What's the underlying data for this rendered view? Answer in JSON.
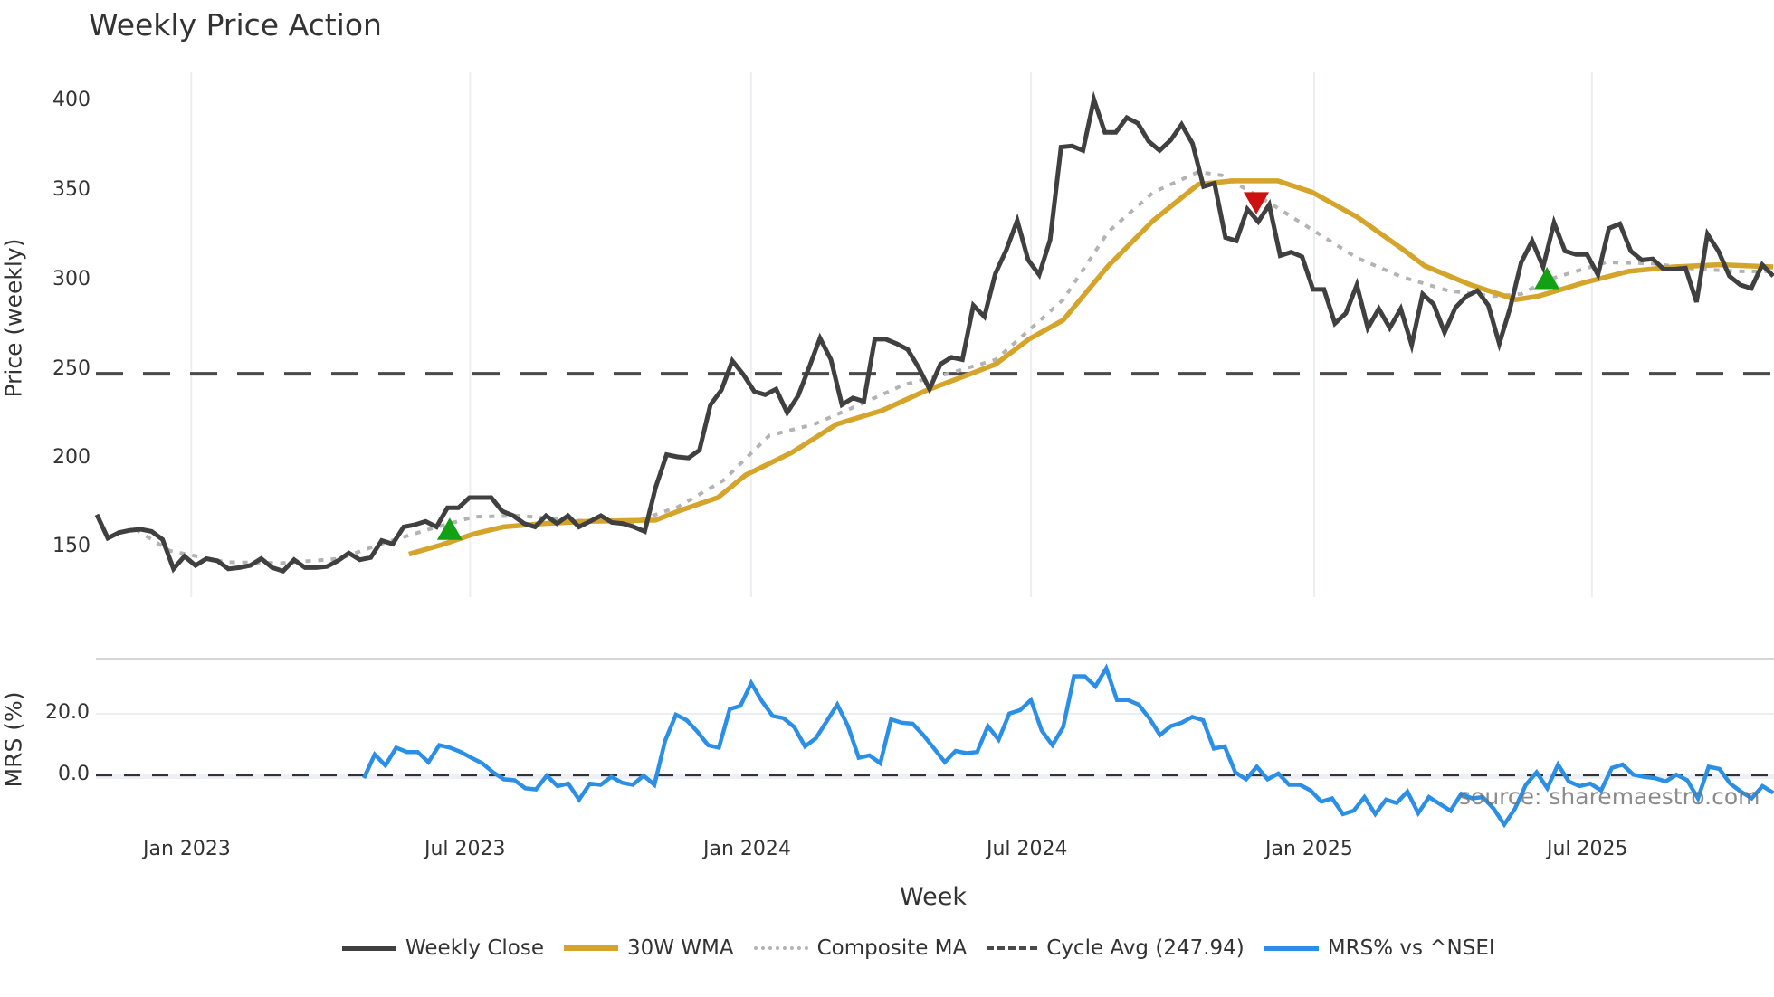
{
  "title": "Weekly Price Action",
  "watermark": "source: sharemaestro.com",
  "colors": {
    "close": "#404040",
    "wma": "#d4a52a",
    "composite": "#b3b3b3",
    "cycle": "#4a4a4a",
    "mrs": "#2b8fe6",
    "buy": "#14a014",
    "sell": "#cc1111",
    "grid": "#eceef1"
  },
  "axes": {
    "price_ylabel": "Price (weekly)",
    "mrs_ylabel": "MRS (%)",
    "xlabel": "Week",
    "price_ticks": [
      "400",
      "350",
      "300",
      "250",
      "200",
      "150"
    ],
    "mrs_ticks": [
      "20.0",
      "0.0"
    ],
    "x_ticks": [
      "Jan 2023",
      "Jul 2023",
      "Jan 2024",
      "Jul 2024",
      "Jan 2025",
      "Jul 2025"
    ]
  },
  "legend": [
    {
      "label": "Weekly Close"
    },
    {
      "label": "30W WMA"
    },
    {
      "label": "Composite MA"
    },
    {
      "label": "Cycle Avg (247.94)"
    },
    {
      "label": "MRS% vs ^NSEI"
    }
  ],
  "chart_data": [
    {
      "type": "line",
      "title": "Weekly Price Action",
      "xlabel": "Week",
      "ylabel": "Price (weekly)",
      "ylim": [
        122,
        410
      ],
      "x_tick_labels": [
        "Jan 2023",
        "Jul 2023",
        "Jan 2024",
        "Jul 2024",
        "Jan 2025",
        "Jul 2025"
      ],
      "x_tick_weeks": [
        8.8,
        34.8,
        61.0,
        87.1,
        113.5,
        139.4
      ],
      "y_ticks": [
        150,
        200,
        250,
        300,
        350,
        400
      ],
      "grid": "vertical",
      "legend_position": "bottom",
      "cycle_avg": 247.94,
      "series": [
        {
          "name": "Weekly Close",
          "week_start": 0,
          "week_end": 156.3,
          "values": [
            169.3,
            156.1,
            159.2,
            160.5,
            161.1,
            159.9,
            155.4,
            139.0,
            146.0,
            140.9,
            144.7,
            143.5,
            139.0,
            139.7,
            140.9,
            144.7,
            139.7,
            137.8,
            144.1,
            139.7,
            139.7,
            140.3,
            143.5,
            147.9,
            144.1,
            145.3,
            154.8,
            152.9,
            162.4,
            163.6,
            165.5,
            162.4,
            173.1,
            173.1,
            178.8,
            178.8,
            178.8,
            171.2,
            168.7,
            164.3,
            162.4,
            168.7,
            164.3,
            168.7,
            162.4,
            165.5,
            168.7,
            164.9,
            164.3,
            162.4,
            159.9,
            184.5,
            202.8,
            201.5,
            200.9,
            205.3,
            230.6,
            238.8,
            255.2,
            247.6,
            238.1,
            236.2,
            239.4,
            226.2,
            235.6,
            251.4,
            267.8,
            255.8,
            230.6,
            234.4,
            232.5,
            267.2,
            267.2,
            264.7,
            261.5,
            251.4,
            239.4,
            253.3,
            257.1,
            255.8,
            286.1,
            279.8,
            303.8,
            317.0,
            333.5,
            311.4,
            303.2,
            322.7,
            374.5,
            375.1,
            372.6,
            401.0,
            382.7,
            382.7,
            390.9,
            387.8,
            377.7,
            372.6,
            378.3,
            387.1,
            376.4,
            352.4,
            354.3,
            324.0,
            322.1,
            339.8,
            332.8,
            342.3,
            313.9,
            315.8,
            313.3,
            295.0,
            295.0,
            276.0,
            281.7,
            297.5,
            273.5,
            284.2,
            273.5,
            284.2,
            264.0,
            292.4,
            286.8,
            271.0,
            284.9,
            291.2,
            294.3,
            286.1,
            264.7,
            284.9,
            310.1,
            322.1,
            307.6,
            332.2,
            316.4,
            314.5,
            314.5,
            303.2,
            329.1,
            331.6,
            316.4,
            311.4,
            312.0,
            306.3,
            306.3,
            306.9,
            288.0,
            325.9,
            316.4,
            302.5,
            297.5,
            295.6,
            308.8,
            302.5
          ]
        },
        {
          "name": "30W WMA",
          "points": [
            [
              29.1,
              147.2
            ],
            [
              32.1,
              152.3
            ],
            [
              35.2,
              158.6
            ],
            [
              37.9,
              162.4
            ],
            [
              41.6,
              164.3
            ],
            [
              45.8,
              165.5
            ],
            [
              52.1,
              166.2
            ],
            [
              54.2,
              171.2
            ],
            [
              57.9,
              178.8
            ],
            [
              60.5,
              191.4
            ],
            [
              64.8,
              204.0
            ],
            [
              69.0,
              219.8
            ],
            [
              73.2,
              227.4
            ],
            [
              77.4,
              238.8
            ],
            [
              81.6,
              248.2
            ],
            [
              83.8,
              253.3
            ],
            [
              86.9,
              267.2
            ],
            [
              90.1,
              277.9
            ],
            [
              94.3,
              308.2
            ],
            [
              98.5,
              333.5
            ],
            [
              102.7,
              353.7
            ],
            [
              105.9,
              355.6
            ],
            [
              110.1,
              355.6
            ],
            [
              113.3,
              349.3
            ],
            [
              117.5,
              335.4
            ],
            [
              121.7,
              317.7
            ],
            [
              123.8,
              308.2
            ],
            [
              128.1,
              297.5
            ],
            [
              132.3,
              289.3
            ],
            [
              134.4,
              291.2
            ],
            [
              138.6,
              298.7
            ],
            [
              142.8,
              305.1
            ],
            [
              147.0,
              307.6
            ],
            [
              151.3,
              308.8
            ],
            [
              156.3,
              307.6
            ]
          ]
        },
        {
          "name": "Composite MA",
          "points": [
            [
              3.6,
              161.1
            ],
            [
              6.8,
              149.1
            ],
            [
              12.0,
              142.8
            ],
            [
              17.3,
              142.2
            ],
            [
              22.6,
              144.7
            ],
            [
              26.8,
              153.5
            ],
            [
              31.0,
              161.1
            ],
            [
              35.2,
              168.1
            ],
            [
              39.5,
              168.7
            ],
            [
              43.7,
              166.2
            ],
            [
              50.0,
              164.9
            ],
            [
              54.2,
              173.7
            ],
            [
              58.4,
              188.3
            ],
            [
              62.7,
              213.5
            ],
            [
              66.9,
              219.8
            ],
            [
              71.1,
              230.6
            ],
            [
              75.3,
              241.9
            ],
            [
              79.5,
              248.2
            ],
            [
              83.8,
              255.8
            ],
            [
              86.9,
              272.2
            ],
            [
              90.1,
              289.3
            ],
            [
              94.3,
              327.2
            ],
            [
              98.5,
              349.2
            ],
            [
              102.7,
              360.6
            ],
            [
              104.9,
              358.7
            ],
            [
              109.1,
              344.2
            ],
            [
              113.3,
              328.4
            ],
            [
              117.5,
              312.6
            ],
            [
              121.7,
              301.9
            ],
            [
              126.0,
              294.3
            ],
            [
              130.2,
              291.2
            ],
            [
              132.8,
              292.4
            ],
            [
              135.4,
              300.6
            ],
            [
              140.7,
              310.1
            ],
            [
              144.9,
              309.5
            ],
            [
              149.2,
              306.3
            ],
            [
              153.4,
              305.1
            ],
            [
              156.3,
              305.1
            ]
          ]
        },
        {
          "name": "Cycle Avg (247.94)",
          "value": 247.94
        }
      ],
      "markers": [
        {
          "type": "buy",
          "shape": "triangle-up",
          "week": 32.9,
          "value": 160.5
        },
        {
          "type": "sell",
          "shape": "triangle-down",
          "week": 108.1,
          "value": 344.0
        },
        {
          "type": "buy",
          "shape": "triangle-up",
          "week": 135.2,
          "value": 300.5
        }
      ]
    },
    {
      "type": "line",
      "title": "",
      "xlabel": "Week",
      "ylabel": "MRS (%)",
      "ylim": [
        -20,
        38
      ],
      "y_ticks": [
        0.0,
        20.0
      ],
      "zero_line": "dashed",
      "series": [
        {
          "name": "MRS% vs ^NSEI",
          "week_start": 24.9,
          "week_end": 156.3,
          "values": [
            -0.9,
            6.8,
            3.2,
            9.0,
            7.6,
            7.6,
            4.3,
            9.8,
            9.0,
            7.6,
            5.7,
            3.9,
            1.0,
            -1.3,
            -1.6,
            -4.2,
            -4.6,
            -0.1,
            -3.5,
            -2.7,
            -7.9,
            -2.7,
            -3.1,
            -0.5,
            -2.4,
            -3.1,
            -0.1,
            -3.1,
            11.3,
            19.7,
            17.9,
            14.2,
            9.8,
            9.0,
            21.5,
            22.6,
            30.0,
            24.1,
            19.3,
            18.6,
            15.7,
            9.4,
            12.0,
            17.5,
            23.0,
            16.0,
            5.7,
            6.5,
            3.9,
            18.2,
            17.1,
            16.8,
            13.1,
            8.7,
            4.3,
            7.9,
            7.2,
            7.6,
            16.0,
            11.6,
            20.1,
            21.2,
            24.5,
            14.6,
            9.8,
            15.7,
            32.2,
            32.2,
            28.9,
            34.8,
            24.5,
            24.5,
            23.0,
            18.6,
            13.1,
            16.0,
            17.1,
            19.0,
            17.9,
            8.7,
            9.4,
            1.0,
            -1.3,
            2.8,
            -1.3,
            0.6,
            -3.1,
            -3.1,
            -4.9,
            -8.6,
            -7.5,
            -12.6,
            -11.5,
            -7.1,
            -12.6,
            -7.9,
            -9.0,
            -5.3,
            -12.3,
            -7.1,
            -9.3,
            -11.5,
            -6.0,
            -7.5,
            -7.1,
            -10.8,
            -16.0,
            -10.8,
            -3.1,
            1.0,
            -4.2,
            3.5,
            -2.0,
            -3.5,
            -2.7,
            -4.9,
            2.4,
            3.5,
            0.2,
            -0.5,
            -0.9,
            -2.0,
            0.2,
            -1.6,
            -7.5,
            2.8,
            2.1,
            -2.7,
            -5.3,
            -7.5,
            -3.5,
            -5.7
          ]
        }
      ]
    }
  ]
}
